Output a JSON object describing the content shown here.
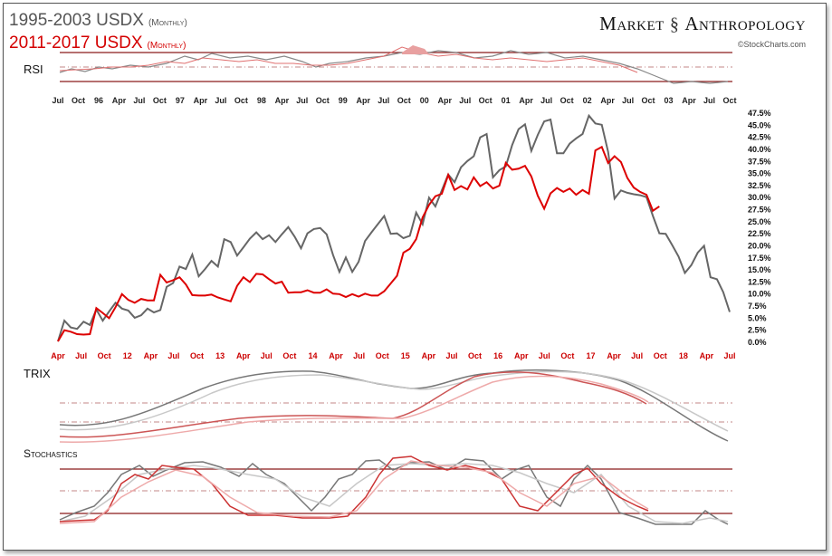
{
  "header": {
    "title_gray": "1995-2003 USDX",
    "title_gray_sub": "(Monthly)",
    "title_red": "2011-2017 USDX",
    "title_red_sub": "(Monthly)",
    "brand_left": "Market",
    "brand_right": "Anthropology",
    "credit": "©StockCharts.com"
  },
  "colors": {
    "gray_series": "#666666",
    "red_series": "#dd0000",
    "gray_light": "#bbbbbb",
    "red_light": "#f0a0a0",
    "frame": "#555555"
  },
  "chart_data": [
    {
      "panel": "rsi",
      "type": "line",
      "title": "RSI",
      "series": []
    },
    {
      "panel": "price",
      "type": "line",
      "y_ticks": [
        "47.5%",
        "45.0%",
        "42.5%",
        "40.0%",
        "37.5%",
        "35.0%",
        "32.5%",
        "30.0%",
        "27.5%",
        "25.0%",
        "22.5%",
        "20.0%",
        "17.5%",
        "15.0%",
        "12.5%",
        "10.0%",
        "7.5%",
        "5.0%",
        "2.5%",
        "0.0%"
      ],
      "ylim": [
        0,
        47.5
      ],
      "x_labels_gray": [
        "Jul",
        "Oct",
        "96",
        "Apr",
        "Jul",
        "Oct",
        "97",
        "Apr",
        "Jul",
        "Oct",
        "98",
        "Apr",
        "Jul",
        "Oct",
        "99",
        "Apr",
        "Jul",
        "Oct",
        "00",
        "Apr",
        "Jul",
        "Oct",
        "01",
        "Apr",
        "Jul",
        "Oct",
        "02",
        "Apr",
        "Jul",
        "Oct",
        "03",
        "Apr",
        "Jul",
        "Oct"
      ],
      "x_labels_red": [
        "Apr",
        "Jul",
        "Oct",
        "12",
        "Apr",
        "Jul",
        "Oct",
        "13",
        "Apr",
        "Jul",
        "Oct",
        "14",
        "Apr",
        "Jul",
        "Oct",
        "15",
        "Apr",
        "Jul",
        "Oct",
        "16",
        "Apr",
        "Jul",
        "Oct",
        "17",
        "Apr",
        "Jul",
        "Oct",
        "18",
        "Apr",
        "Jul"
      ],
      "series": [
        {
          "values": [
            0.0,
            4.3,
            2.9,
            2.6,
            4.1,
            3.4,
            6.6,
            4.3,
            6.2,
            8.0,
            6.8,
            6.4,
            4.9,
            5.4,
            6.8,
            6.0,
            6.5,
            11.3,
            12.1,
            15.5,
            15.0,
            18.0,
            13.5,
            15.0,
            16.7,
            15.5,
            21.2,
            20.6,
            17.8,
            19.5,
            21.3,
            22.6,
            21.2,
            22.0,
            20.6,
            22.2,
            23.7,
            21.7,
            19.3,
            22.4,
            23.3,
            23.5,
            22.2,
            17.9,
            14.4,
            17.4,
            14.4,
            16.5,
            20.8,
            22.6,
            24.3,
            26.0,
            22.3,
            22.4,
            21.4,
            21.9,
            26.7,
            24.3,
            29.8,
            28.0,
            31.3,
            34.6,
            33.0,
            36.1,
            37.4,
            38.4,
            42.3,
            43.0,
            34.0,
            35.5,
            36.3,
            40.7,
            44.0,
            45.0,
            39.5,
            42.8,
            45.6,
            46.0,
            39.0,
            39.0,
            41.0,
            42.1,
            43.0,
            46.8,
            45.2,
            44.9,
            39.3,
            29.6,
            31.3,
            30.8,
            30.5,
            30.3,
            29.9,
            26.0,
            22.4,
            22.3,
            20.0,
            17.6,
            14.2,
            15.8,
            18.4,
            19.8,
            13.3,
            12.9,
            10.2,
            6.1
          ]
        },
        {
          "values": [
            0.0,
            2.3,
            2.0,
            1.5,
            1.4,
            1.5,
            6.9,
            5.9,
            4.8,
            7.1,
            9.8,
            8.6,
            8.0,
            8.8,
            8.5,
            8.5,
            13.8,
            12.2,
            12.7,
            13.3,
            11.8,
            9.6,
            9.5,
            9.5,
            9.7,
            9.1,
            8.7,
            8.3,
            11.5,
            13.3,
            12.3,
            14.0,
            13.9,
            12.9,
            12.0,
            12.4,
            10.1,
            10.2,
            10.2,
            10.6,
            10.1,
            10.1,
            10.8,
            9.9,
            9.8,
            9.2,
            9.8,
            9.3,
            9.9,
            9.5,
            9.5,
            10.4,
            12.0,
            13.6,
            18.4,
            19.2,
            21.2,
            25.7,
            28.3,
            30.1,
            30.6,
            34.5,
            31.4,
            32.2,
            31.5,
            34.0,
            32.2,
            33.0,
            31.7,
            32.3,
            37.0,
            35.6,
            35.8,
            36.4,
            34.2,
            30.2,
            27.5,
            30.7,
            31.8,
            31.0,
            31.7,
            30.4,
            31.4,
            30.6,
            39.6,
            40.3,
            37.0,
            38.4,
            37.2,
            33.9,
            31.9,
            31.0,
            30.4,
            27.1,
            28.0
          ]
        }
      ]
    },
    {
      "panel": "trix",
      "type": "line",
      "title": "TRIX",
      "series": []
    },
    {
      "panel": "stochastics",
      "type": "line",
      "title": "Stochastics",
      "series": []
    }
  ]
}
